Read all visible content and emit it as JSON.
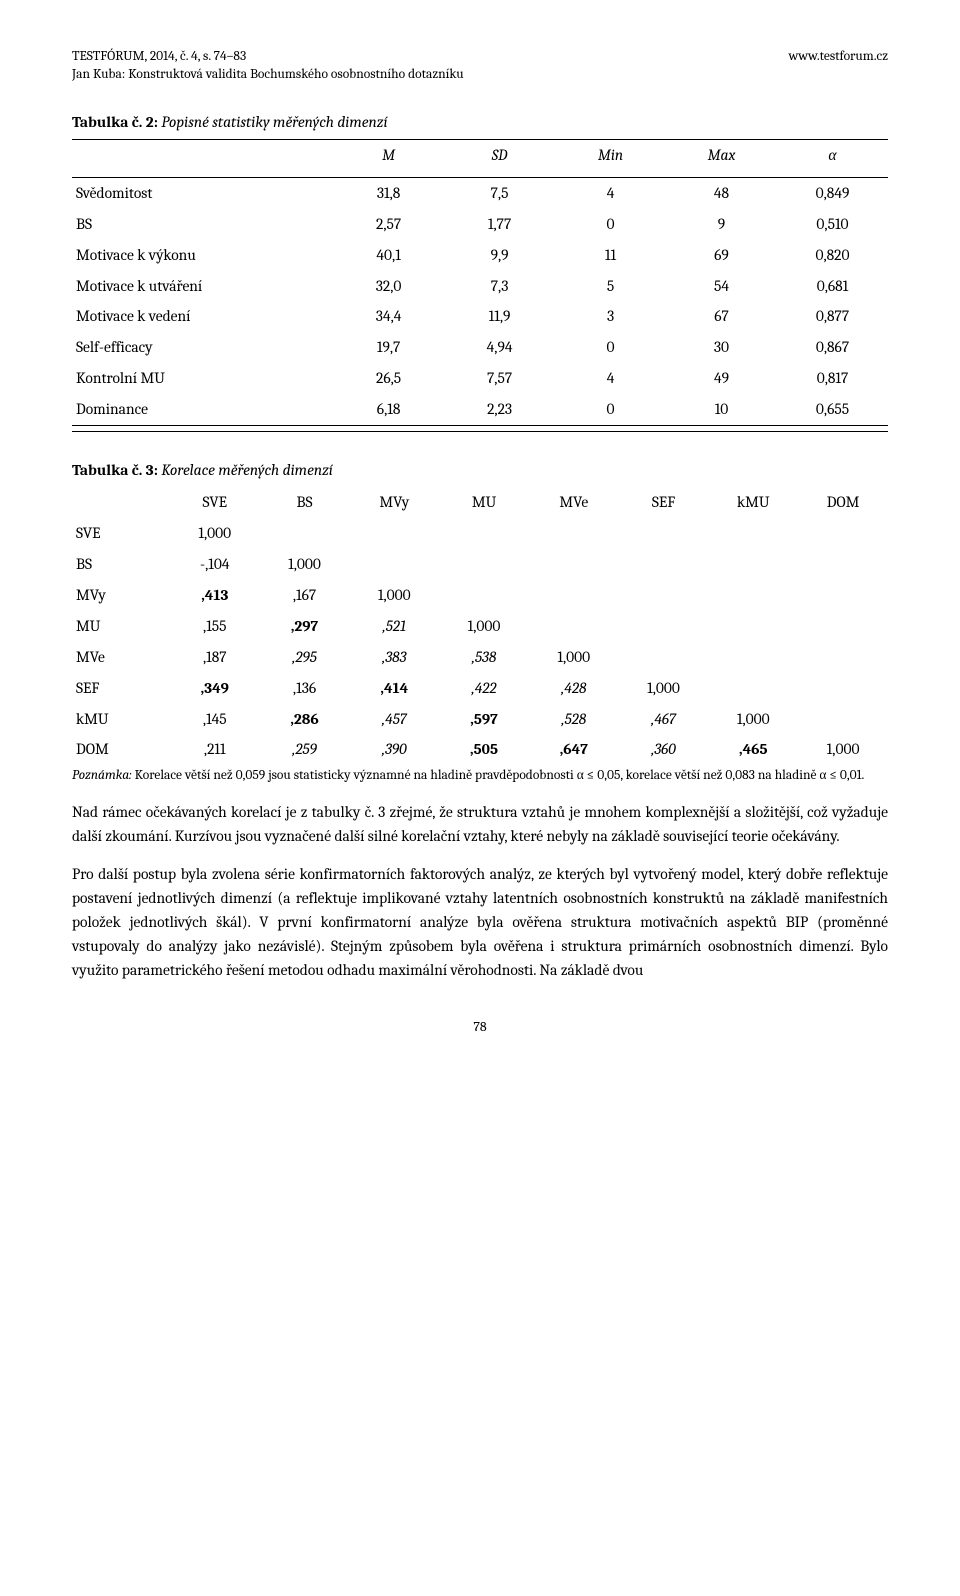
{
  "header": {
    "journal_ref": "TESTFÓRUM, 2014, č. 4, s. 74–83",
    "url": "www.testforum.cz",
    "author_subtitle": "Jan Kuba: Konstruktová validita Bochumského osobnostního dotazníku"
  },
  "table2": {
    "caption_num": "Tabulka č. 2:",
    "caption_txt": " Popisné statistiky měřených dimenzí",
    "cols": [
      "",
      "M",
      "SD",
      "Min",
      "Max",
      "α"
    ],
    "rows": [
      [
        "Svědomitost",
        "31,8",
        "7,5",
        "4",
        "48",
        "0,849"
      ],
      [
        "BS",
        "2,57",
        "1,77",
        "0",
        "9",
        "0,510"
      ],
      [
        "Motivace k výkonu",
        "40,1",
        "9,9",
        "11",
        "69",
        "0,820"
      ],
      [
        "Motivace k utváření",
        "32,0",
        "7,3",
        "5",
        "54",
        "0,681"
      ],
      [
        "Motivace k vedení",
        "34,4",
        "11,9",
        "3",
        "67",
        "0,877"
      ],
      [
        "Self-efficacy",
        "19,7",
        "4,94",
        "0",
        "30",
        "0,867"
      ],
      [
        "Kontrolní MU",
        "26,5",
        "7,57",
        "4",
        "49",
        "0,817"
      ],
      [
        "Dominance",
        "6,18",
        "2,23",
        "0",
        "10",
        "0,655"
      ]
    ],
    "col_widths": [
      "32%",
      "13.6%",
      "13.6%",
      "13.6%",
      "13.6%",
      "13.6%"
    ]
  },
  "table3": {
    "caption_num": "Tabulka č. 3:",
    "caption_txt": " Korelace měřených dimenzí",
    "cols": [
      "",
      "SVE",
      "BS",
      "MVy",
      "MU",
      "MVe",
      "SEF",
      "kMU",
      "DOM"
    ],
    "rows": [
      {
        "lab": "SVE",
        "cells": [
          "1,000",
          "",
          "",
          "",
          "",
          "",
          "",
          ""
        ],
        "styles": [
          "",
          "",
          "",
          "",
          "",
          "",
          "",
          ""
        ]
      },
      {
        "lab": "BS",
        "cells": [
          "-,104",
          "1,000",
          "",
          "",
          "",
          "",
          "",
          ""
        ],
        "styles": [
          "",
          "",
          "",
          "",
          "",
          "",
          "",
          ""
        ]
      },
      {
        "lab": "MVy",
        "cells": [
          ",413",
          ",167",
          "1,000",
          "",
          "",
          "",
          "",
          ""
        ],
        "styles": [
          "b",
          "",
          "",
          "",
          "",
          "",
          "",
          ""
        ]
      },
      {
        "lab": "MU",
        "cells": [
          ",155",
          ",297",
          ",521",
          "1,000",
          "",
          "",
          "",
          ""
        ],
        "styles": [
          "",
          "b",
          "it",
          "",
          "",
          "",
          "",
          ""
        ]
      },
      {
        "lab": "MVe",
        "cells": [
          ",187",
          ",295",
          ",383",
          ",538",
          "1,000",
          "",
          "",
          ""
        ],
        "styles": [
          "",
          "it",
          "it",
          "it",
          "",
          "",
          "",
          ""
        ]
      },
      {
        "lab": "SEF",
        "cells": [
          ",349",
          ",136",
          ",414",
          ",422",
          ",428",
          "1,000",
          "",
          ""
        ],
        "styles": [
          "b",
          "",
          "b",
          "it",
          "it",
          "",
          "",
          ""
        ]
      },
      {
        "lab": "kMU",
        "cells": [
          ",145",
          ",286",
          ",457",
          ",597",
          ",528",
          ",467",
          "1,000",
          ""
        ],
        "styles": [
          "",
          "b",
          "it",
          "b",
          "it",
          "it",
          "",
          ""
        ]
      },
      {
        "lab": "DOM",
        "cells": [
          ",211",
          ",259",
          ",390",
          ",505",
          ",647",
          ",360",
          ",465",
          "1,000"
        ],
        "styles": [
          "",
          "it",
          "it",
          "b",
          "b",
          "it",
          "b",
          ""
        ]
      }
    ],
    "col_widths": [
      "12%",
      "11%",
      "11%",
      "11%",
      "11%",
      "11%",
      "11%",
      "11%",
      "11%"
    ]
  },
  "note": {
    "pre": "Poznámka:",
    "body": " Korelace větší než 0,059 jsou statisticky významné na hladině pravděpodobnosti α ≤ 0,05, korelace větší než 0,083 na hladině α ≤ 0,01."
  },
  "paragraphs": {
    "p1": "Nad rámec očekávaných korelací je z tabulky č. 3 zřejmé, že struktura vztahů je mnohem komplexnější a složitější, což vyžaduje další zkoumání. Kurzívou jsou vyznačené další silné korelační vztahy, které nebyly na základě související teorie očekávány.",
    "p2": "Pro další postup byla zvolena série konfirmatorních faktorových analýz, ze kterých byl vytvořený model, který dobře reflektuje postavení jednotlivých dimenzí (a reflektuje implikované vztahy latentních osobnostních konstruktů na základě manifestních položek jednotlivých škál). V první konfirmatorní analýze byla ověřena struktura motivačních aspektů BIP (proměnné vstupovaly do analýzy jako nezávislé). Stejným způsobem byla ověřena i struktura primárních osobnostních dimenzí. Bylo využito parametrického řešení metodou odhadu maximální věrohodnosti. Na základě dvou"
  },
  "page_number": "78"
}
